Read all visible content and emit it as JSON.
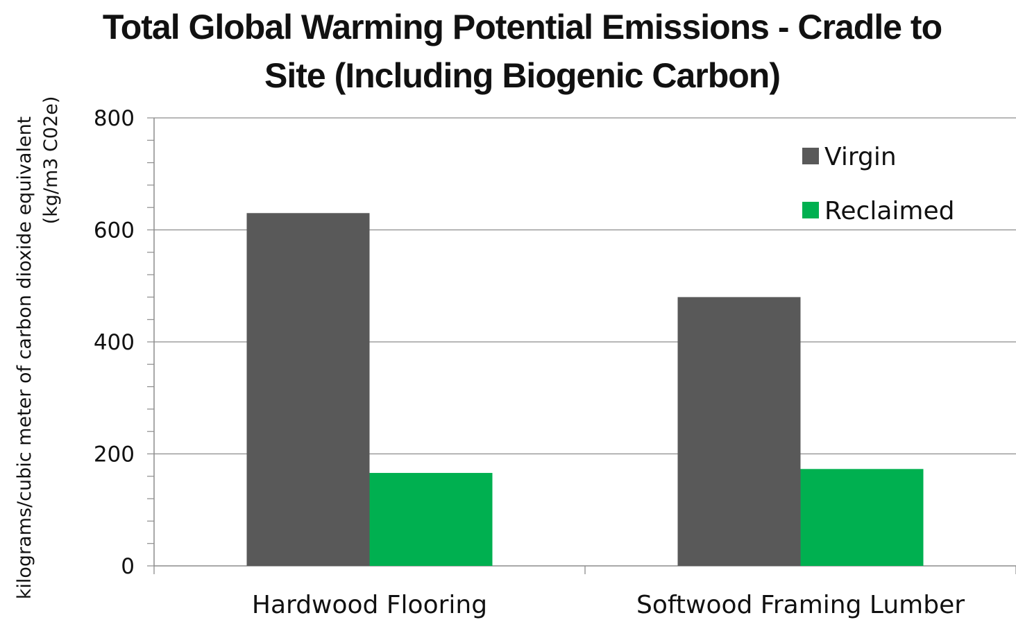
{
  "chart_data": {
    "type": "bar",
    "title": "Total Global Warming Potential Emissions - Cradle to Site (Including Biogenic Carbon)",
    "ylabel_line1": "kilograms/cubic meter of carbon dioxide equivalent",
    "ylabel_line2": "(kg/m3 C02e)",
    "xlabel": "",
    "categories": [
      "Hardwood Flooring",
      "Softwood Framing Lumber"
    ],
    "series": [
      {
        "name": "Virgin",
        "color": "#595959",
        "values": [
          630,
          480
        ]
      },
      {
        "name": "Reclaimed",
        "color": "#00b050",
        "values": [
          166,
          173
        ]
      }
    ],
    "ylim": [
      0,
      800
    ],
    "yticks": [
      0,
      200,
      400,
      600,
      800
    ],
    "grid": true,
    "legend_position": "top-right"
  }
}
